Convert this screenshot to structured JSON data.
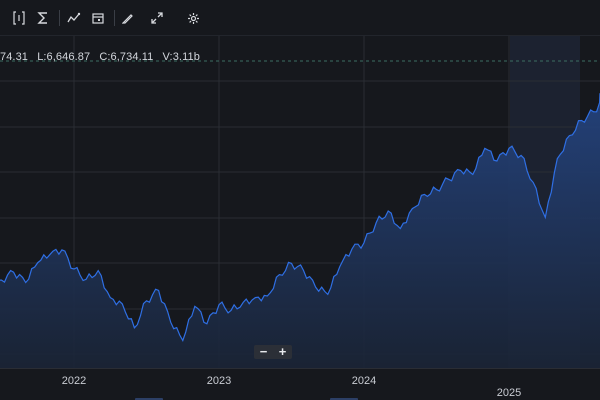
{
  "toolbar": {
    "tools": [
      {
        "name": "indicator-bracket-icon"
      },
      {
        "name": "sigma-icon"
      },
      {
        "name": "trend-icon"
      },
      {
        "name": "calendar-icon"
      },
      {
        "name": "pencil-icon"
      },
      {
        "name": "fullscreen-icon"
      },
      {
        "name": "gear-icon"
      }
    ]
  },
  "ohlc": {
    "high": "74.31",
    "low": "L:6,646.87",
    "close": "C:6,734.11",
    "volume": "V:3.11b"
  },
  "zoom": {
    "minus": "−",
    "plus": "+"
  },
  "colors": {
    "background": "#16181d",
    "line": "#2f6fe4",
    "fill_top": "#24437e",
    "grid": "#2a2d34",
    "highlight": "#1c2230"
  },
  "chart_data": {
    "type": "area",
    "x_labels": [
      {
        "label": "2022",
        "year": 2022
      },
      {
        "label": "2023",
        "year": 2023
      },
      {
        "label": "2024",
        "year": 2024
      },
      {
        "label": "2025",
        "year": 2025
      }
    ],
    "ylim": [
      3500,
      6900
    ],
    "series": [
      {
        "points": [
          [
            "2021-07",
            4380
          ],
          [
            "2021-08",
            4480
          ],
          [
            "2021-09",
            4350
          ],
          [
            "2021-10",
            4600
          ],
          [
            "2021-11",
            4700
          ],
          [
            "2021-12",
            4760
          ],
          [
            "2022-01",
            4520
          ],
          [
            "2022-02",
            4390
          ],
          [
            "2022-03",
            4500
          ],
          [
            "2022-04",
            4160
          ],
          [
            "2022-05",
            4080
          ],
          [
            "2022-06",
            3780
          ],
          [
            "2022-07",
            4120
          ],
          [
            "2022-08",
            4250
          ],
          [
            "2022-09",
            3850
          ],
          [
            "2022-10",
            3620
          ],
          [
            "2022-11",
            4050
          ],
          [
            "2022-12",
            3830
          ],
          [
            "2023-01",
            4070
          ],
          [
            "2023-02",
            4000
          ],
          [
            "2023-03",
            4100
          ],
          [
            "2023-04",
            4160
          ],
          [
            "2023-05",
            4180
          ],
          [
            "2023-06",
            4450
          ],
          [
            "2023-07",
            4590
          ],
          [
            "2023-08",
            4500
          ],
          [
            "2023-09",
            4290
          ],
          [
            "2023-10",
            4200
          ],
          [
            "2023-11",
            4550
          ],
          [
            "2023-12",
            4770
          ],
          [
            "2024-01",
            4850
          ],
          [
            "2024-02",
            5100
          ],
          [
            "2024-03",
            5250
          ],
          [
            "2024-04",
            5030
          ],
          [
            "2024-05",
            5280
          ],
          [
            "2024-06",
            5460
          ],
          [
            "2024-07",
            5520
          ],
          [
            "2024-08",
            5650
          ],
          [
            "2024-09",
            5760
          ],
          [
            "2024-10",
            5710
          ],
          [
            "2024-11",
            6040
          ],
          [
            "2024-12",
            5880
          ],
          [
            "2025-01",
            6040
          ],
          [
            "2025-02",
            5950
          ],
          [
            "2025-03",
            5610
          ],
          [
            "2025-04",
            5170
          ],
          [
            "2025-05",
            5910
          ],
          [
            "2025-06",
            6200
          ],
          [
            "2025-07",
            6390
          ],
          [
            "2025-08",
            6500
          ],
          [
            "2025-09",
            6690
          ],
          [
            "2025-10",
            6734
          ]
        ]
      }
    ],
    "grid": true
  }
}
